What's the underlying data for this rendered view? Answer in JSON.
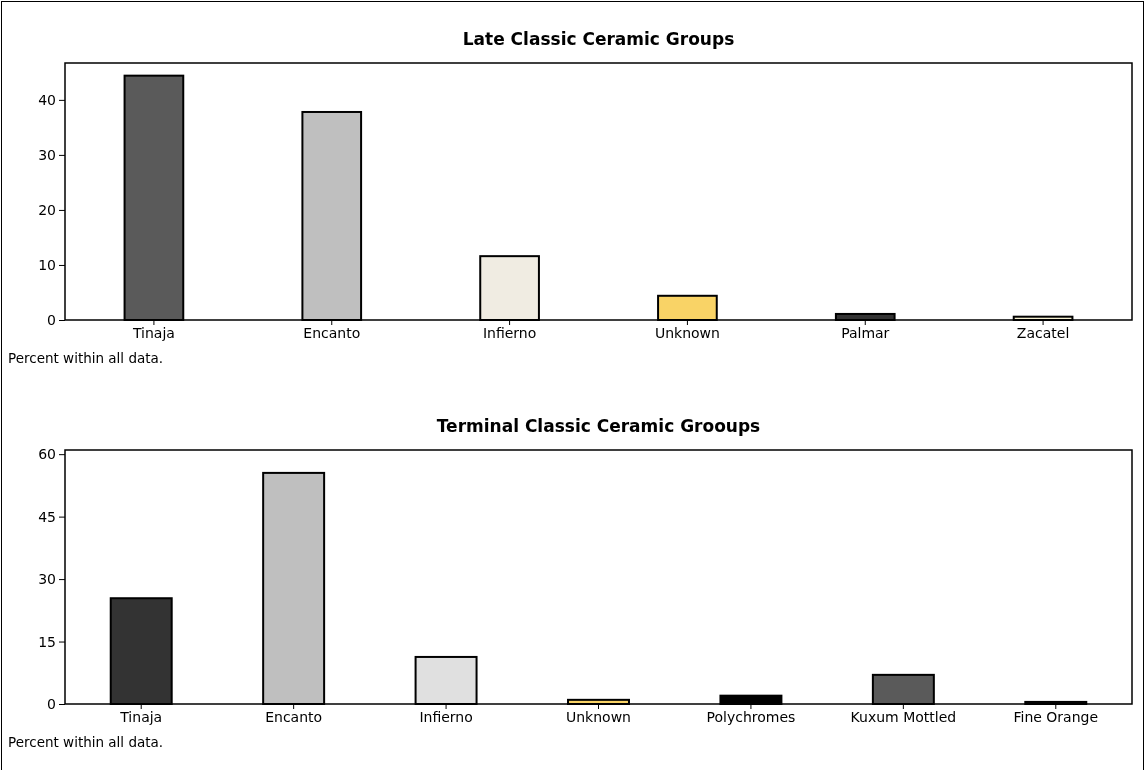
{
  "chart_data": [
    {
      "type": "bar",
      "title": "Late Classic Ceramic Groups",
      "categories": [
        "Tinaja",
        "Encanto",
        "Infierno",
        "Unknown",
        "Palmar",
        "Zacatel"
      ],
      "values": [
        44.4,
        37.8,
        11.6,
        4.4,
        1.1,
        0.6
      ],
      "colors": [
        "#5a5a5a",
        "#bfbfbf",
        "#f0ece2",
        "#f9d366",
        "#333333",
        "#f6f1d2"
      ],
      "ylim": [
        0,
        46.7
      ],
      "yticks": [
        0,
        10,
        20,
        30,
        40
      ],
      "annotations": [
        "Percent within all data."
      ]
    },
    {
      "type": "bar",
      "title": "Terminal Classic Ceramic Grooups",
      "categories": [
        "Tinaja",
        "Encanto",
        "Infierno",
        "Unknown",
        "Polychromes",
        "Kuxum Mottled",
        "Fine Orange"
      ],
      "values": [
        25.4,
        55.5,
        11.3,
        1,
        2,
        7,
        0.5
      ],
      "colors": [
        "#333333",
        "#bfbfbf",
        "#e0e0e0",
        "#f9d366",
        "#000000",
        "#5a5a5a",
        "#333333"
      ],
      "ylim": [
        0,
        61
      ],
      "yticks": [
        0,
        15,
        30,
        45,
        60
      ],
      "annotations": [
        "Percent within all data."
      ]
    }
  ]
}
